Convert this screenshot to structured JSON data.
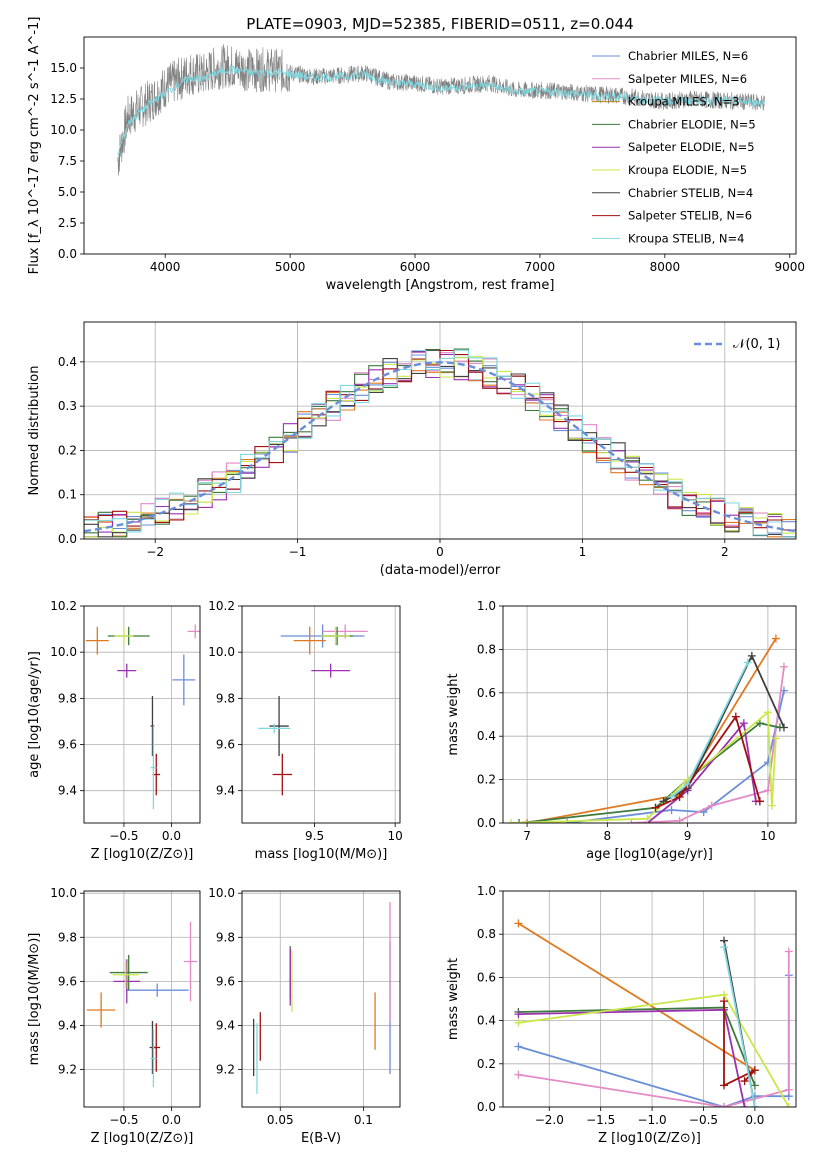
{
  "chart_data": [
    {
      "id": "spectrum",
      "type": "line",
      "title": "PLATE=0903, MJD=52385, FIBERID=0511, z=0.044",
      "xlabel": "wavelength [Angstrom, rest frame]",
      "ylabel": "Flux [f_λ 10^-17 erg cm^-2 s^-1 A^-1]",
      "xlim": [
        3350,
        9050
      ],
      "ylim": [
        0,
        17.5
      ],
      "xticks": [
        4000,
        5000,
        6000,
        7000,
        8000,
        9000
      ],
      "yticks": [
        0.0,
        2.5,
        5.0,
        7.5,
        10.0,
        12.5,
        15.0
      ],
      "legend_position": "top-right",
      "legend": [
        {
          "name": "Chabrier MILES, N_SSP=6",
          "color": "#6a8fd8"
        },
        {
          "name": "Salpeter MILES, N_SSP=6",
          "color": "#e38ac7"
        },
        {
          "name": "Kroupa MILES, N_SSP=3",
          "color": "#b8860b"
        },
        {
          "name": "Chabrier ELODIE, N_SSP=5",
          "color": "#3d7a3d"
        },
        {
          "name": "Salpeter ELODIE, N_SSP=5",
          "color": "#9b30b0"
        },
        {
          "name": "Kroupa ELODIE, N_SSP=5",
          "color": "#c9e84a"
        },
        {
          "name": "Chabrier STELIB, N_SSP=4",
          "color": "#404040"
        },
        {
          "name": "Salpeter STELIB, N_SSP=6",
          "color": "#a01010"
        },
        {
          "name": "Kroupa STELIB, N_SSP=4",
          "color": "#7fd8e0"
        }
      ],
      "series": [
        {
          "name": "data",
          "color": "#808080",
          "x": [
            3620,
            3700,
            3800,
            3900,
            4000,
            4100,
            4200,
            4300,
            4400,
            4500,
            4600,
            4700,
            4800,
            4900,
            5000,
            5200,
            5400,
            5600,
            5800,
            6000,
            6200,
            6400,
            6600,
            6800,
            7000,
            7200,
            7400,
            7600,
            7800,
            8000,
            8200,
            8400,
            8600,
            8800
          ],
          "y": [
            7.5,
            11.0,
            11.8,
            12.5,
            13.5,
            14.0,
            14.6,
            14.4,
            15.0,
            15.2,
            15.0,
            14.8,
            14.9,
            14.8,
            14.6,
            14.3,
            14.4,
            14.6,
            13.9,
            13.8,
            13.5,
            13.6,
            13.8,
            13.2,
            13.2,
            13.1,
            12.9,
            12.8,
            12.6,
            12.3,
            12.5,
            12.4,
            12.3,
            12.2
          ]
        },
        {
          "name": "model",
          "color": "#7fd8e0",
          "x": [
            3620,
            3700,
            3800,
            3900,
            4000,
            4100,
            4200,
            4300,
            4400,
            4500,
            4600,
            4700,
            4800,
            4900,
            5000,
            5200,
            5400,
            5600,
            5800,
            6000,
            6200,
            6400,
            6600,
            6800,
            7000,
            7200,
            7400,
            7600,
            7800,
            8000,
            8200,
            8400,
            8600,
            8800
          ],
          "y": [
            8.0,
            10.5,
            11.5,
            12.3,
            13.0,
            13.6,
            14.2,
            14.0,
            14.6,
            14.9,
            14.8,
            14.6,
            14.7,
            14.6,
            14.5,
            14.2,
            14.3,
            14.5,
            13.8,
            13.7,
            13.4,
            13.5,
            13.6,
            13.1,
            13.1,
            13.0,
            12.8,
            12.7,
            12.5,
            12.3,
            12.4,
            12.4,
            12.3,
            12.2
          ]
        }
      ]
    },
    {
      "id": "residuals",
      "type": "line",
      "xlabel": "(data-model)/error",
      "ylabel": "Normed distribution",
      "xlim": [
        -2.5,
        2.5
      ],
      "ylim": [
        0,
        0.49
      ],
      "xticks": [
        -2,
        -1,
        0,
        1,
        2
      ],
      "yticks": [
        0.0,
        0.1,
        0.2,
        0.3,
        0.4
      ],
      "grid": true,
      "legend_position": "top-right",
      "legend": [
        {
          "name": "N(0,1)",
          "label": "𝒩(0, 1)",
          "color": "#6a8fd8",
          "dashed": true
        }
      ],
      "histogram_series_colors": [
        "#6a8fd8",
        "#e38ac7",
        "#e07820",
        "#3d7a3d",
        "#9b30b0",
        "#c9e84a",
        "#404040",
        "#a01010",
        "#7fd8e0"
      ],
      "bin_width": 0.1
    },
    {
      "id": "age_vs_Z",
      "type": "scatter",
      "xlabel": "Z [log10(Z/Z⊙)]",
      "ylabel": "age  [log10(age/yr)]",
      "xlim": [
        -0.92,
        0.3
      ],
      "ylim": [
        9.26,
        10.2
      ],
      "xticks": [
        -0.5,
        0.0
      ],
      "xticklabels": [
        "−0.5",
        "0.0"
      ],
      "yticks": [
        9.4,
        9.6,
        9.8,
        10.0,
        10.2
      ],
      "grid": true,
      "points": [
        {
          "x": 0.13,
          "y": 9.88,
          "xerr": 0.12,
          "yerr": 0.11,
          "color": "#6a8fd8"
        },
        {
          "x": 0.25,
          "y": 10.09,
          "xerr": 0.08,
          "yerr": 0.03,
          "color": "#e38ac7"
        },
        {
          "x": -0.78,
          "y": 10.05,
          "xerr": 0.12,
          "yerr": 0.06,
          "color": "#e07820"
        },
        {
          "x": -0.45,
          "y": 10.07,
          "xerr": 0.22,
          "yerr": 0.04,
          "color": "#3d7a3d"
        },
        {
          "x": -0.47,
          "y": 9.92,
          "xerr": 0.1,
          "yerr": 0.03,
          "color": "#9b30b0"
        },
        {
          "x": -0.5,
          "y": 10.07,
          "xerr": 0.1,
          "yerr": 0.04,
          "color": "#c9e84a"
        },
        {
          "x": -0.2,
          "y": 9.68,
          "xerr": 0.02,
          "yerr": 0.13,
          "color": "#404040"
        },
        {
          "x": -0.16,
          "y": 9.47,
          "xerr": 0.04,
          "yerr": 0.09,
          "color": "#a01010"
        },
        {
          "x": -0.19,
          "y": 9.5,
          "xerr": 0.03,
          "yerr": 0.18,
          "color": "#7fd8e0"
        }
      ]
    },
    {
      "id": "age_vs_mass",
      "type": "scatter",
      "xlabel": "mass [log10(M/M⊙)]",
      "xlim": [
        9.05,
        10.03
      ],
      "ylim": [
        9.26,
        10.2
      ],
      "xticks": [
        9.5,
        10.0
      ],
      "yticks": [
        9.4,
        9.6,
        9.8,
        10.0,
        10.2
      ],
      "grid": true,
      "points": [
        {
          "x": 9.55,
          "y": 10.07,
          "xerr": 0.26,
          "yerr": 0.05,
          "color": "#6a8fd8"
        },
        {
          "x": 9.69,
          "y": 10.09,
          "xerr": 0.14,
          "yerr": 0.03,
          "color": "#e38ac7"
        },
        {
          "x": 9.47,
          "y": 10.05,
          "xerr": 0.1,
          "yerr": 0.06,
          "color": "#e07820"
        },
        {
          "x": 9.64,
          "y": 10.07,
          "xerr": 0.1,
          "yerr": 0.04,
          "color": "#3d7a3d"
        },
        {
          "x": 9.6,
          "y": 9.92,
          "xerr": 0.12,
          "yerr": 0.03,
          "color": "#9b30b0"
        },
        {
          "x": 9.63,
          "y": 10.07,
          "xerr": 0.09,
          "yerr": 0.04,
          "color": "#c9e84a"
        },
        {
          "x": 9.28,
          "y": 9.68,
          "xerr": 0.06,
          "yerr": 0.13,
          "color": "#404040"
        },
        {
          "x": 9.3,
          "y": 9.47,
          "xerr": 0.06,
          "yerr": 0.09,
          "color": "#a01010"
        },
        {
          "x": 9.25,
          "y": 9.67,
          "xerr": 0.1,
          "yerr": 0.02,
          "color": "#7fd8e0"
        }
      ]
    },
    {
      "id": "massweight_vs_age",
      "type": "line",
      "xlabel": "age  [log10(age/yr)]",
      "ylabel": "mass weight",
      "xlim": [
        6.7,
        10.35
      ],
      "ylim": [
        0,
        1.0
      ],
      "xticks": [
        7,
        8,
        9,
        10
      ],
      "yticks": [
        0.0,
        0.2,
        0.4,
        0.6,
        0.8,
        1.0
      ],
      "grid": true,
      "series": [
        {
          "name": "s1",
          "color": "#6a8fd8",
          "x": [
            7.5,
            8.8,
            9.2,
            10.0,
            10.2
          ],
          "y": [
            0.0,
            0.06,
            0.05,
            0.28,
            0.61
          ]
        },
        {
          "name": "s2",
          "color": "#e38ac7",
          "x": [
            8.3,
            8.9,
            9.3,
            10.0,
            10.2
          ],
          "y": [
            0.0,
            0.01,
            0.08,
            0.15,
            0.72
          ]
        },
        {
          "name": "s3",
          "color": "#e07820",
          "x": [
            7.0,
            8.9,
            10.1
          ],
          "y": [
            0.0,
            0.13,
            0.85
          ]
        },
        {
          "name": "s4",
          "color": "#3d7a3d",
          "x": [
            6.9,
            8.6,
            9.0,
            9.9,
            10.15
          ],
          "y": [
            0.0,
            0.07,
            0.2,
            0.46,
            0.44
          ]
        },
        {
          "name": "s5",
          "color": "#9b30b0",
          "x": [
            8.5,
            9.0,
            9.7,
            9.85,
            9.9
          ],
          "y": [
            0.0,
            0.15,
            0.46,
            0.1,
            0.1
          ]
        },
        {
          "name": "s6",
          "color": "#c9e84a",
          "x": [
            6.8,
            8.5,
            9.0,
            10.0,
            10.05,
            10.1
          ],
          "y": [
            0.0,
            0.02,
            0.2,
            0.51,
            0.08,
            0.39
          ]
        },
        {
          "name": "s7",
          "color": "#404040",
          "x": [
            8.7,
            9.0,
            9.8,
            10.2
          ],
          "y": [
            0.1,
            0.16,
            0.77,
            0.44
          ]
        },
        {
          "name": "s8",
          "color": "#a01010",
          "x": [
            8.6,
            8.9,
            9.6,
            9.9
          ],
          "y": [
            0.07,
            0.12,
            0.49,
            0.1
          ]
        },
        {
          "name": "s9",
          "color": "#7fd8e0",
          "x": [
            8.8,
            9.0,
            9.75
          ],
          "y": [
            0.12,
            0.18,
            0.74
          ]
        }
      ]
    },
    {
      "id": "mass_vs_Z",
      "type": "scatter",
      "xlabel": "Z [log10(Z/Z⊙)]",
      "ylabel": "mass [log10(M/M⊙)]",
      "xlim": [
        -0.92,
        0.3
      ],
      "ylim": [
        9.03,
        10.01
      ],
      "xticks": [
        -0.5,
        0.0
      ],
      "xticklabels": [
        "−0.5",
        "0.0"
      ],
      "yticks": [
        9.2,
        9.4,
        9.6,
        9.8,
        10.0
      ],
      "grid": true,
      "points": [
        {
          "x": -0.15,
          "y": 9.56,
          "xerr": 0.33,
          "yerr": 0.03,
          "color": "#6a8fd8"
        },
        {
          "x": 0.2,
          "y": 9.69,
          "xerr": 0.07,
          "yerr": 0.18,
          "color": "#e38ac7"
        },
        {
          "x": -0.74,
          "y": 9.47,
          "xerr": 0.15,
          "yerr": 0.08,
          "color": "#e07820"
        },
        {
          "x": -0.45,
          "y": 9.64,
          "xerr": 0.2,
          "yerr": 0.08,
          "color": "#3d7a3d"
        },
        {
          "x": -0.47,
          "y": 9.6,
          "xerr": 0.14,
          "yerr": 0.1,
          "color": "#9b30b0"
        },
        {
          "x": -0.48,
          "y": 9.63,
          "xerr": 0.14,
          "yerr": 0.06,
          "color": "#c9e84a"
        },
        {
          "x": -0.2,
          "y": 9.3,
          "xerr": 0.03,
          "yerr": 0.12,
          "color": "#404040"
        },
        {
          "x": -0.16,
          "y": 9.3,
          "xerr": 0.04,
          "yerr": 0.11,
          "color": "#a01010"
        },
        {
          "x": -0.19,
          "y": 9.25,
          "xerr": 0.03,
          "yerr": 0.13,
          "color": "#7fd8e0"
        }
      ]
    },
    {
      "id": "mass_vs_EBV",
      "type": "scatter",
      "xlabel": "E(B-V)",
      "xlim": [
        0.027,
        0.122
      ],
      "ylim": [
        9.03,
        10.01
      ],
      "xticks": [
        0.05,
        0.1
      ],
      "yticks": [
        9.2,
        9.4,
        9.6,
        9.8,
        10.0
      ],
      "grid": true,
      "points": [
        {
          "x": 0.116,
          "y": 9.48,
          "yerr": 0.3,
          "color": "#6a8fd8"
        },
        {
          "x": 0.116,
          "y": 9.69,
          "yerr": 0.27,
          "color": "#e38ac7"
        },
        {
          "x": 0.107,
          "y": 9.42,
          "yerr": 0.13,
          "color": "#e07820"
        },
        {
          "x": 0.056,
          "y": 9.64,
          "yerr": 0.12,
          "color": "#3d7a3d"
        },
        {
          "x": 0.056,
          "y": 9.62,
          "yerr": 0.13,
          "color": "#9b30b0"
        },
        {
          "x": 0.057,
          "y": 9.6,
          "yerr": 0.14,
          "color": "#c9e84a"
        },
        {
          "x": 0.034,
          "y": 9.3,
          "yerr": 0.13,
          "color": "#404040"
        },
        {
          "x": 0.038,
          "y": 9.35,
          "yerr": 0.11,
          "color": "#a01010"
        },
        {
          "x": 0.036,
          "y": 9.25,
          "yerr": 0.16,
          "color": "#7fd8e0"
        }
      ]
    },
    {
      "id": "massweight_vs_Z",
      "type": "line",
      "xlabel": "Z [log10(Z/Z⊙)]",
      "ylabel": "mass weight",
      "xlim": [
        -2.45,
        0.4
      ],
      "ylim": [
        0,
        1.0
      ],
      "xticks": [
        -2.0,
        -1.5,
        -1.0,
        -0.5,
        0.0
      ],
      "xticklabels": [
        "−2.0",
        "−1.5",
        "−1.0",
        "−0.5",
        "0.0"
      ],
      "yticks": [
        0.0,
        0.2,
        0.4,
        0.6,
        0.8,
        1.0
      ],
      "grid": true,
      "series": [
        {
          "name": "s1",
          "color": "#6a8fd8",
          "x": [
            -2.3,
            -0.3,
            0.0,
            0.33,
            0.33
          ],
          "y": [
            0.28,
            0.0,
            0.05,
            0.05,
            0.61
          ]
        },
        {
          "name": "s2",
          "color": "#e38ac7",
          "x": [
            -2.3,
            -0.3,
            0.33,
            0.33
          ],
          "y": [
            0.15,
            0.0,
            0.08,
            0.72
          ]
        },
        {
          "name": "s3",
          "color": "#e07820",
          "x": [
            -2.3,
            0.0
          ],
          "y": [
            0.85,
            0.17
          ]
        },
        {
          "name": "s4",
          "color": "#3d7a3d",
          "x": [
            -2.3,
            -0.3,
            0.0
          ],
          "y": [
            0.44,
            0.46,
            0.1
          ]
        },
        {
          "name": "s5",
          "color": "#9b30b0",
          "x": [
            -2.3,
            -0.3,
            -0.1
          ],
          "y": [
            0.43,
            0.45,
            0.0
          ]
        },
        {
          "name": "s6",
          "color": "#c9e84a",
          "x": [
            -2.3,
            -0.3,
            0.33
          ],
          "y": [
            0.39,
            0.52,
            0.0
          ]
        },
        {
          "name": "s7",
          "color": "#404040",
          "x": [
            -0.3,
            0.0
          ],
          "y": [
            0.77,
            0.0
          ]
        },
        {
          "name": "s8",
          "color": "#a01010",
          "x": [
            -0.3,
            -0.3,
            -0.0,
            -0.1
          ],
          "y": [
            0.49,
            0.1,
            0.17,
            0.12
          ]
        },
        {
          "name": "s9",
          "color": "#7fd8e0",
          "x": [
            -0.3,
            0.0
          ],
          "y": [
            0.74,
            0.0
          ]
        }
      ]
    }
  ]
}
